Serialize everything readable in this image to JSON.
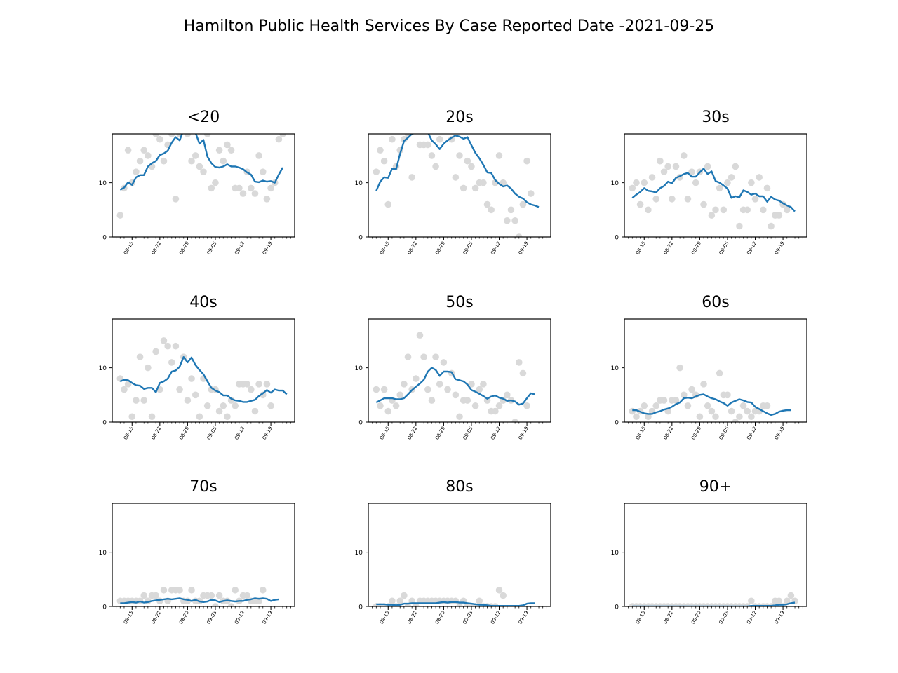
{
  "title": "Hamilton Public Health Services By Case Reported Date -2021-09-25",
  "colors": {
    "line": "#1f77b4",
    "dots": "#d9d9d9"
  },
  "chart_data": {
    "type": "scatter+line",
    "layout": "3x3 small multiples",
    "ylim": [
      0,
      19
    ],
    "yticks": [
      0,
      10
    ],
    "xlim": [
      "2021-08-10",
      "2021-09-25"
    ],
    "xticks": [
      "08-15",
      "08-22",
      "08-29",
      "09-05",
      "09-12",
      "09-19"
    ],
    "x_start": "2021-08-12",
    "panels": [
      {
        "name": "<20",
        "counts": [
          4,
          9,
          16,
          10,
          12,
          14,
          16,
          15,
          13,
          19,
          18,
          14,
          17,
          19,
          7,
          19,
          20,
          19,
          14,
          15,
          13,
          12,
          19,
          9,
          10,
          16,
          14,
          17,
          16,
          9,
          9,
          8,
          12,
          9,
          8,
          15,
          12,
          7,
          9,
          10,
          18,
          19
        ],
        "avg": [
          8.7,
          9.1,
          10.1,
          9.6,
          11.0,
          11.4,
          11.4,
          13.0,
          13.6,
          14.0,
          15.1,
          15.4,
          15.9,
          17.4,
          18.4,
          17.8,
          19.8,
          20.5,
          20.0,
          19.2,
          17.2,
          17.9,
          14.8,
          13.6,
          12.9,
          12.8,
          13.0,
          13.4,
          13.0,
          13.0,
          12.8,
          12.5,
          11.9,
          11.5,
          10.2,
          10.1,
          10.4,
          10.2,
          10.3,
          10.0,
          11.5,
          12.8
        ]
      },
      {
        "name": "20s",
        "counts": [
          12,
          16,
          14,
          6,
          18,
          13,
          16,
          18,
          19,
          11,
          20,
          17,
          17,
          17,
          15,
          13,
          18,
          20,
          20,
          18,
          11,
          15,
          9,
          14,
          13,
          9,
          10,
          10,
          6,
          5,
          10,
          15,
          10,
          3,
          5,
          3,
          0,
          6,
          14,
          8
        ],
        "avg": [
          8.5,
          10.2,
          11.0,
          10.9,
          12.6,
          12.5,
          15.3,
          17.7,
          18.3,
          19.0,
          19.2,
          19.5,
          19.8,
          19.3,
          17.8,
          17.1,
          16.2,
          17.2,
          17.8,
          18.3,
          18.7,
          18.5,
          18.1,
          18.4,
          16.9,
          15.5,
          14.5,
          13.3,
          11.9,
          11.8,
          10.5,
          9.8,
          9.3,
          9.5,
          8.9,
          8.0,
          7.4,
          7.1,
          6.4,
          6.0,
          5.8,
          5.5
        ]
      },
      {
        "name": "30s",
        "counts": [
          9,
          10,
          6,
          10,
          5,
          11,
          7,
          14,
          12,
          13,
          7,
          13,
          11,
          15,
          7,
          12,
          10,
          12,
          6,
          13,
          4,
          5,
          9,
          5,
          10,
          11,
          13,
          2,
          5,
          5,
          10,
          7,
          11,
          5,
          9,
          2,
          4,
          4,
          6,
          5
        ],
        "avg": [
          7.2,
          7.8,
          8.3,
          9.0,
          8.5,
          8.4,
          8.2,
          9.0,
          9.4,
          10.2,
          9.9,
          10.9,
          11.2,
          11.6,
          11.8,
          11.1,
          11.1,
          11.9,
          12.6,
          11.6,
          12.1,
          10.3,
          10.0,
          9.5,
          8.9,
          7.2,
          7.5,
          7.3,
          8.6,
          8.3,
          7.8,
          8.0,
          7.5,
          7.5,
          6.5,
          7.4,
          6.9,
          6.7,
          6.2,
          5.8,
          5.5,
          4.7
        ]
      },
      {
        "name": "40s",
        "counts": [
          8,
          6,
          7,
          1,
          4,
          12,
          4,
          10,
          1,
          13,
          6,
          15,
          14,
          11,
          14,
          6,
          12,
          4,
          8,
          5,
          1,
          8,
          3,
          6,
          6,
          2,
          3,
          1,
          4,
          3,
          7,
          7,
          7,
          6,
          2,
          7,
          5,
          7,
          3
        ],
        "avg": [
          7.5,
          7.8,
          7.7,
          7.2,
          6.8,
          6.7,
          6.1,
          6.3,
          6.3,
          5.5,
          7.2,
          7.5,
          8.0,
          9.3,
          9.5,
          10.2,
          12.0,
          11.0,
          11.9,
          10.5,
          9.6,
          8.8,
          7.5,
          6.3,
          5.8,
          5.5,
          4.9,
          4.9,
          4.3,
          4.0,
          3.9,
          3.7,
          3.7,
          3.9,
          4.1,
          4.8,
          5.3,
          5.9,
          5.4,
          6.0,
          5.8,
          5.8,
          5.1
        ]
      },
      {
        "name": "50s",
        "counts": [
          6,
          3,
          6,
          2,
          4,
          3,
          5,
          7,
          12,
          6,
          8,
          16,
          12,
          6,
          4,
          12,
          7,
          11,
          6,
          9,
          5,
          1,
          4,
          4,
          7,
          3,
          6,
          7,
          4,
          2,
          2,
          3,
          4,
          5,
          4,
          0,
          11,
          9,
          3
        ],
        "avg": [
          3.6,
          4.0,
          4.4,
          4.4,
          4.4,
          4.2,
          4.2,
          4.4,
          5.1,
          5.9,
          6.5,
          7.1,
          7.8,
          9.3,
          10.0,
          9.6,
          8.5,
          9.3,
          9.3,
          9.2,
          7.9,
          7.7,
          7.5,
          6.9,
          5.9,
          5.6,
          5.2,
          4.8,
          4.3,
          4.7,
          4.9,
          4.5,
          4.3,
          3.9,
          4.0,
          3.8,
          3.2,
          3.4,
          4.4,
          5.3,
          5.1
        ]
      },
      {
        "name": "60s",
        "counts": [
          2,
          1,
          2,
          3,
          1,
          2,
          3,
          4,
          4,
          2,
          4,
          4,
          10,
          5,
          3,
          6,
          5,
          1,
          7,
          3,
          2,
          1,
          9,
          5,
          5,
          2,
          0,
          1,
          3,
          2,
          1,
          2,
          2,
          3,
          3
        ],
        "avg": [
          2.2,
          2.2,
          1.9,
          1.6,
          1.5,
          1.5,
          1.8,
          2.0,
          2.3,
          2.5,
          2.8,
          3.3,
          3.6,
          4.4,
          4.5,
          4.4,
          4.7,
          5.0,
          5.1,
          4.7,
          4.4,
          4.2,
          3.8,
          3.5,
          3.0,
          3.6,
          3.9,
          4.2,
          4.0,
          3.7,
          3.6,
          2.8,
          2.4,
          2.0,
          1.6,
          1.3,
          1.5,
          1.9,
          2.1,
          2.2,
          2.2
        ]
      },
      {
        "name": "70s",
        "counts": [
          1,
          1,
          1,
          1,
          1,
          1,
          2,
          1,
          2,
          2,
          1,
          3,
          1,
          3,
          3,
          3,
          1,
          1,
          3,
          1,
          1,
          2,
          2,
          2,
          0,
          2,
          1,
          1,
          0,
          3,
          1,
          2,
          2,
          1,
          1,
          1,
          3
        ],
        "avg": [
          0.6,
          0.6,
          0.7,
          0.8,
          0.7,
          0.9,
          0.7,
          0.8,
          1.0,
          1.1,
          1.2,
          1.3,
          1.4,
          1.3,
          1.4,
          1.5,
          1.3,
          1.2,
          1.0,
          1.2,
          0.9,
          0.8,
          0.9,
          1.2,
          1.1,
          0.8,
          1.0,
          1.1,
          1.0,
          0.9,
          1.0,
          1.0,
          1.2,
          1.3,
          1.5,
          1.4,
          1.5,
          1.4,
          1.0,
          1.2,
          1.3
        ]
      },
      {
        "name": "80s",
        "counts": [
          0,
          0,
          0,
          0,
          1,
          0,
          1,
          2,
          0,
          1,
          0,
          1,
          1,
          1,
          1,
          1,
          1,
          1,
          1,
          1,
          1,
          0,
          1,
          0,
          0,
          0,
          1,
          0,
          0,
          0,
          0,
          3,
          2
        ],
        "avg": [
          0.4,
          0.4,
          0.4,
          0.3,
          0.3,
          0.2,
          0.3,
          0.5,
          0.5,
          0.6,
          0.6,
          0.6,
          0.6,
          0.6,
          0.6,
          0.6,
          0.7,
          0.8,
          0.7,
          0.8,
          0.8,
          0.7,
          0.7,
          0.6,
          0.5,
          0.4,
          0.3,
          0.3,
          0.2,
          0.1,
          0.1,
          0.1,
          0.1,
          0.1,
          0.1,
          0.1,
          0.1,
          0.2,
          0.5,
          0.6,
          0.6
        ]
      },
      {
        "name": "90+",
        "counts": [
          0,
          0,
          0,
          0,
          0,
          0,
          0,
          0,
          0,
          0,
          0,
          0,
          0,
          0,
          0,
          0,
          0,
          0,
          0,
          0,
          0,
          0,
          0,
          0,
          0,
          0,
          0,
          0,
          0,
          0,
          1,
          0,
          0,
          0,
          0,
          0,
          1,
          1,
          0,
          1,
          2,
          1
        ],
        "avg": [
          0,
          0,
          0,
          0,
          0,
          0,
          0,
          0,
          0,
          0,
          0,
          0,
          0,
          0,
          0,
          0,
          0,
          0,
          0,
          0,
          0,
          0,
          0,
          0,
          0,
          0,
          0,
          0,
          0,
          0,
          0.1,
          0.1,
          0.1,
          0.1,
          0.1,
          0.1,
          0.2,
          0.3,
          0.3,
          0.4,
          0.6,
          0.7
        ]
      }
    ]
  }
}
